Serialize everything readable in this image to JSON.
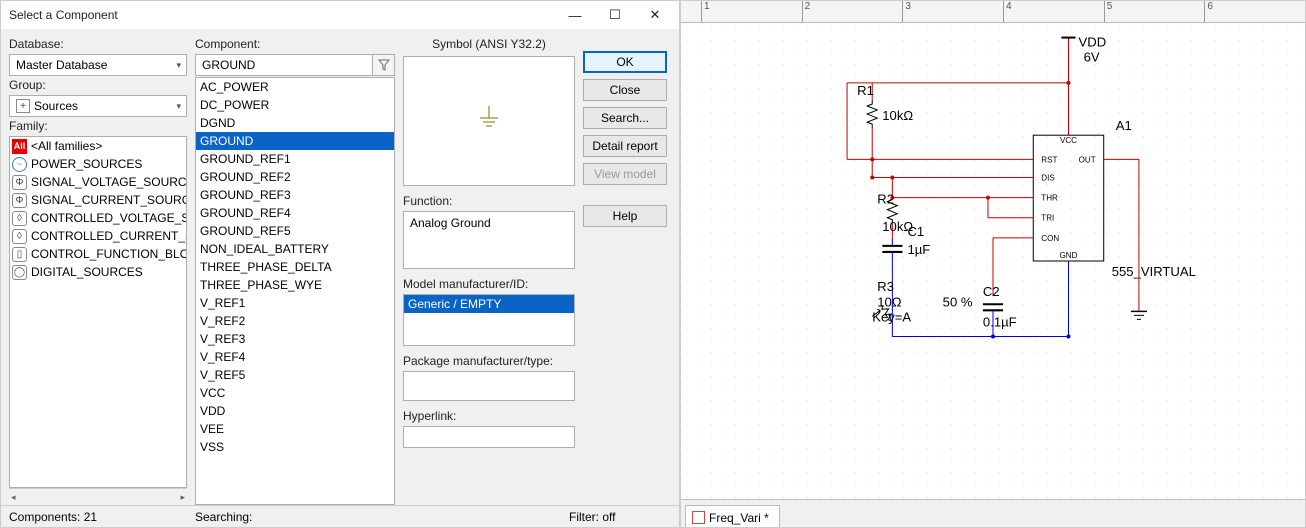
{
  "titlebar": {
    "title": "Select a Component"
  },
  "labels": {
    "database": "Database:",
    "group": "Group:",
    "family": "Family:",
    "component": "Component:",
    "symbol": "Symbol (ANSI Y32.2)",
    "function": "Function:",
    "model": "Model manufacturer/ID:",
    "package": "Package manufacturer/type:",
    "hyperlink": "Hyperlink:"
  },
  "database_value": "Master Database",
  "group_value": "Sources",
  "component_value": "GROUND",
  "function_value": "Analog Ground",
  "model_value": "Generic / EMPTY",
  "families": [
    {
      "name": "<All families>",
      "icon": "all",
      "txt": "All",
      "selected": true
    },
    {
      "name": "POWER_SOURCES",
      "icon": "blue",
      "txt": "~"
    },
    {
      "name": "SIGNAL_VOLTAGE_SOURCES",
      "icon": "circ",
      "txt": "Φ"
    },
    {
      "name": "SIGNAL_CURRENT_SOURCES",
      "icon": "circ",
      "txt": "Φ"
    },
    {
      "name": "CONTROLLED_VOLTAGE_SOURCES",
      "icon": "circ",
      "txt": "◊"
    },
    {
      "name": "CONTROLLED_CURRENT_SOURCES",
      "icon": "circ",
      "txt": "◊"
    },
    {
      "name": "CONTROL_FUNCTION_BLOCKS",
      "icon": "circ",
      "txt": "▯"
    },
    {
      "name": "DIGITAL_SOURCES",
      "icon": "circ",
      "txt": "◯"
    }
  ],
  "components": [
    {
      "name": "AC_POWER"
    },
    {
      "name": "DC_POWER"
    },
    {
      "name": "DGND"
    },
    {
      "name": "GROUND",
      "selected": true
    },
    {
      "name": "GROUND_REF1"
    },
    {
      "name": "GROUND_REF2"
    },
    {
      "name": "GROUND_REF3"
    },
    {
      "name": "GROUND_REF4"
    },
    {
      "name": "GROUND_REF5"
    },
    {
      "name": "NON_IDEAL_BATTERY"
    },
    {
      "name": "THREE_PHASE_DELTA"
    },
    {
      "name": "THREE_PHASE_WYE"
    },
    {
      "name": "V_REF1"
    },
    {
      "name": "V_REF2"
    },
    {
      "name": "V_REF3"
    },
    {
      "name": "V_REF4"
    },
    {
      "name": "V_REF5"
    },
    {
      "name": "VCC"
    },
    {
      "name": "VDD"
    },
    {
      "name": "VEE"
    },
    {
      "name": "VSS"
    }
  ],
  "buttons": {
    "ok": "OK",
    "close": "Close",
    "search": "Search...",
    "detail": "Detail report",
    "view": "View model",
    "help": "Help"
  },
  "statusbar": {
    "components": "Components: 21",
    "searching": "Searching:",
    "filter": "Filter: off"
  },
  "tab_name": "Freq_Vari *",
  "ruler_ticks": [
    "1",
    "2",
    "3",
    "4",
    "5",
    "6"
  ],
  "colors": {
    "selection": "#0a64c8",
    "wire_red": "#cc0000",
    "wire_blue": "#0000dd",
    "text": "#000000",
    "dark_part": "#222222"
  },
  "circuit": {
    "vdd": {
      "label": "VDD",
      "value": "6V"
    },
    "r1": {
      "label": "R1",
      "value": "10kΩ"
    },
    "r2": {
      "label": "R2",
      "value": "10kΩ"
    },
    "c1": {
      "label": "C1",
      "value": "1µF"
    },
    "r3": {
      "label": "R3",
      "value": "10Ω",
      "key": "Key=A",
      "percent": "50 %"
    },
    "c2": {
      "label": "C2",
      "value": "0.1µF"
    },
    "a1": {
      "label": "A1",
      "type": "555_VIRTUAL"
    },
    "pins": {
      "vcc": "VCC",
      "out": "OUT",
      "rst": "RST",
      "dis": "DIS",
      "thr": "THR",
      "tri": "TRI",
      "con": "CON",
      "gnd": "GND"
    }
  }
}
